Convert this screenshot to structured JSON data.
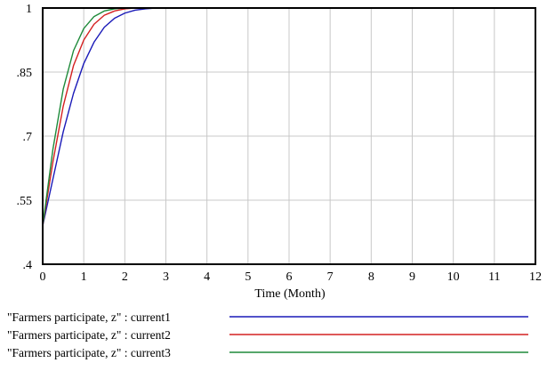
{
  "chart_data": {
    "type": "line",
    "xlabel": "Time (Month)",
    "xlim": [
      0,
      12
    ],
    "ylim": [
      0.4,
      1.0
    ],
    "x_ticks": [
      "0",
      "1",
      "2",
      "3",
      "4",
      "5",
      "6",
      "7",
      "8",
      "9",
      "10",
      "11",
      "12"
    ],
    "y_ticks": [
      {
        "value": 1.0,
        "label": "1"
      },
      {
        "value": 0.85,
        "label": ".85"
      },
      {
        "value": 0.7,
        "label": ".7"
      },
      {
        "value": 0.55,
        "label": ".55"
      },
      {
        "value": 0.4,
        "label": ".4"
      }
    ],
    "grid": true,
    "legend_position": "bottom",
    "series": [
      {
        "name": "\"Farmers participate, z\" : current1",
        "color": "#1a1ab8",
        "x": [
          0,
          0.25,
          0.5,
          0.75,
          1.0,
          1.25,
          1.5,
          1.75,
          2.0,
          2.25,
          2.5,
          2.75,
          3.0,
          12
        ],
        "y": [
          0.49,
          0.6,
          0.71,
          0.8,
          0.87,
          0.92,
          0.955,
          0.976,
          0.988,
          0.995,
          0.998,
          1.0,
          1.0,
          1.0
        ]
      },
      {
        "name": "\"Farmers participate, z\" : current2",
        "color": "#d42020",
        "x": [
          0,
          0.25,
          0.5,
          0.75,
          1.0,
          1.25,
          1.5,
          1.75,
          2.0,
          2.25,
          2.5,
          12
        ],
        "y": [
          0.49,
          0.64,
          0.77,
          0.865,
          0.925,
          0.962,
          0.983,
          0.993,
          0.998,
          1.0,
          1.0,
          1.0
        ]
      },
      {
        "name": "\"Farmers participate, z\" : current3",
        "color": "#1e8a3a",
        "x": [
          0,
          0.25,
          0.5,
          0.75,
          1.0,
          1.25,
          1.5,
          1.75,
          2.0,
          2.25,
          12
        ],
        "y": [
          0.49,
          0.67,
          0.81,
          0.9,
          0.952,
          0.98,
          0.993,
          0.998,
          1.0,
          1.0,
          1.0
        ]
      }
    ]
  }
}
